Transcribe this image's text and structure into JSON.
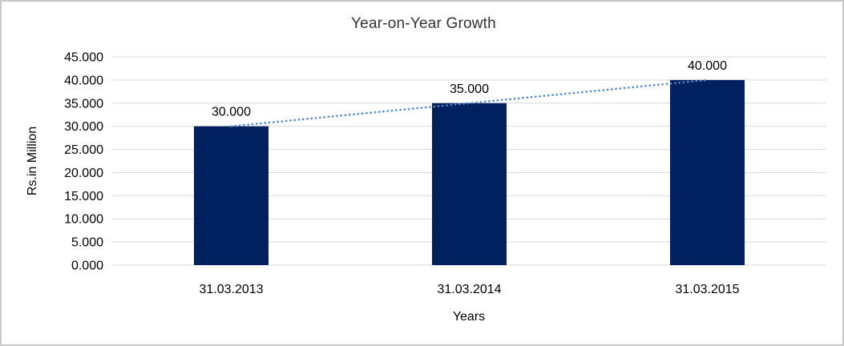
{
  "window": {
    "background_color": "#ffffff",
    "border_color": "#c9c7c7"
  },
  "chart_data": {
    "type": "bar",
    "title": "Year-on-Year Growth",
    "xlabel": "Years",
    "ylabel": "Rs.in Million",
    "categories": [
      "31.03.2013",
      "31.03.2014",
      "31.03.2015"
    ],
    "values": [
      30000,
      35000,
      40000
    ],
    "value_labels": [
      "30.000",
      "35.000",
      "40.000"
    ],
    "y_ticks": [
      "0.000",
      "5.000",
      "10.000",
      "15.000",
      "20.000",
      "25.000",
      "30.000",
      "35.000",
      "40.000",
      "45.000"
    ],
    "y_tick_values": [
      0,
      5000,
      10000,
      15000,
      20000,
      25000,
      30000,
      35000,
      40000,
      45000
    ],
    "ylim": [
      0,
      45000
    ],
    "grid": true,
    "legend": "none",
    "bar_color": "#002060",
    "gridline_color": "#d9d9d9",
    "axis_text_color": "#000000",
    "trendline": {
      "type": "linear",
      "style": "dotted",
      "color": "#4e86c8"
    }
  }
}
